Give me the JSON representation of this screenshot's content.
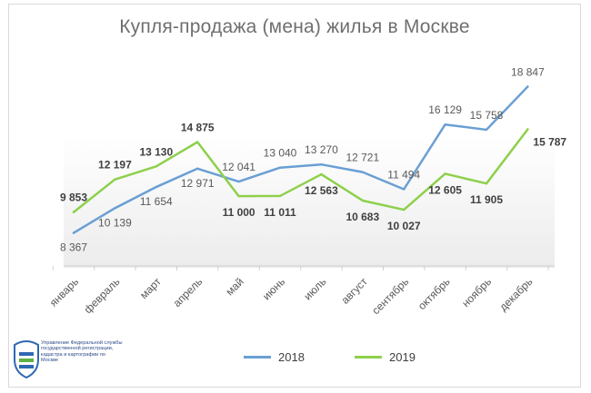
{
  "chart_data": {
    "type": "line",
    "title": "Купля-продажа (мена) жилья в Москве",
    "categories": [
      "январь",
      "февраль",
      "март",
      "апрель",
      "май",
      "июнь",
      "июль",
      "август",
      "сентябрь",
      "октябрь",
      "ноябрь",
      "декабрь"
    ],
    "series": [
      {
        "name": "2018",
        "color": "#6a9fd4",
        "values": [
          8367,
          10139,
          11654,
          12971,
          12041,
          13040,
          13270,
          12721,
          11494,
          16129,
          15758,
          18847
        ],
        "labels": [
          "8 367",
          "10 139",
          "11 654",
          "12 971",
          "12 041",
          "13 040",
          "13 270",
          "12 721",
          "11 494",
          "16 129",
          "15 758",
          "18 847"
        ]
      },
      {
        "name": "2019",
        "color": "#8ed04b",
        "values": [
          9853,
          12197,
          13130,
          14875,
          11000,
          11011,
          12563,
          10683,
          10027,
          12605,
          11905,
          15787
        ],
        "labels": [
          "9 853",
          "12 197",
          "13 130",
          "14 875",
          "11 000",
          "11 011",
          "12 563",
          "10 683",
          "10 027",
          "12 605",
          "11 905",
          "15 787"
        ]
      }
    ],
    "legend_position": "bottom",
    "grid": false
  },
  "logo": {
    "text": "Управление Федеральной службы государственной регистрации, кадастра и картографии по Москве"
  }
}
